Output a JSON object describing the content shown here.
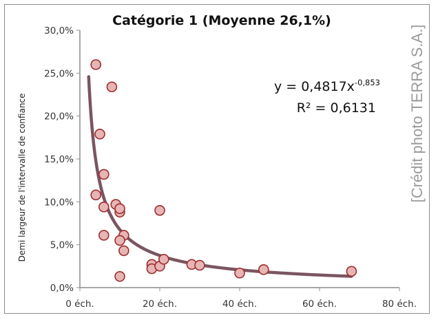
{
  "chart_data": {
    "type": "scatter",
    "title": "Catégorie 1 (Moyenne 26,1%)",
    "ylabel": "Demi largeur de l'intervalle de confiance",
    "xlabel": "",
    "xlim": [
      0,
      80
    ],
    "ylim": [
      0,
      0.3
    ],
    "x_ticks": [
      {
        "value": 0,
        "label": "0 éch."
      },
      {
        "value": 20,
        "label": "20 éch."
      },
      {
        "value": 40,
        "label": "40 éch."
      },
      {
        "value": 60,
        "label": "60 éch."
      },
      {
        "value": 80,
        "label": "80 éch."
      }
    ],
    "y_ticks": [
      {
        "value": 0,
        "label": "0,0%"
      },
      {
        "value": 0.05,
        "label": "5,0%"
      },
      {
        "value": 0.1,
        "label": "10,0%"
      },
      {
        "value": 0.15,
        "label": "15,0%"
      },
      {
        "value": 0.2,
        "label": "20,0%"
      },
      {
        "value": 0.25,
        "label": "25,0%"
      },
      {
        "value": 0.3,
        "label": "30,0%"
      }
    ],
    "points": [
      {
        "x": 4,
        "y": 0.26
      },
      {
        "x": 8,
        "y": 0.234
      },
      {
        "x": 5,
        "y": 0.179
      },
      {
        "x": 6,
        "y": 0.132
      },
      {
        "x": 4,
        "y": 0.108
      },
      {
        "x": 6,
        "y": 0.094
      },
      {
        "x": 9,
        "y": 0.097
      },
      {
        "x": 10,
        "y": 0.088
      },
      {
        "x": 10,
        "y": 0.092
      },
      {
        "x": 6,
        "y": 0.061
      },
      {
        "x": 11,
        "y": 0.061
      },
      {
        "x": 10,
        "y": 0.055
      },
      {
        "x": 11,
        "y": 0.043
      },
      {
        "x": 20,
        "y": 0.09
      },
      {
        "x": 10,
        "y": 0.013
      },
      {
        "x": 18,
        "y": 0.027
      },
      {
        "x": 18,
        "y": 0.022
      },
      {
        "x": 20,
        "y": 0.025
      },
      {
        "x": 21,
        "y": 0.033
      },
      {
        "x": 28,
        "y": 0.027
      },
      {
        "x": 30,
        "y": 0.026
      },
      {
        "x": 40,
        "y": 0.017
      },
      {
        "x": 46,
        "y": 0.021
      },
      {
        "x": 68,
        "y": 0.019
      }
    ],
    "trendline": {
      "type": "power",
      "coefficient": 0.4817,
      "exponent": -0.853,
      "x_range": [
        2.2,
        68
      ],
      "equation_prefix": "y = 0,4817x",
      "equation_exponent": "-0,853",
      "r2_text": "R² = 0,6131"
    },
    "grid": false,
    "legend": "none",
    "colors": {
      "marker_fill": "#e8b4b4",
      "marker_stroke": "#9b2e2e",
      "trendline": "#7a5560",
      "axis": "#8c8c8c"
    }
  },
  "watermark": "[Crédit photo TERRA S.A.]"
}
